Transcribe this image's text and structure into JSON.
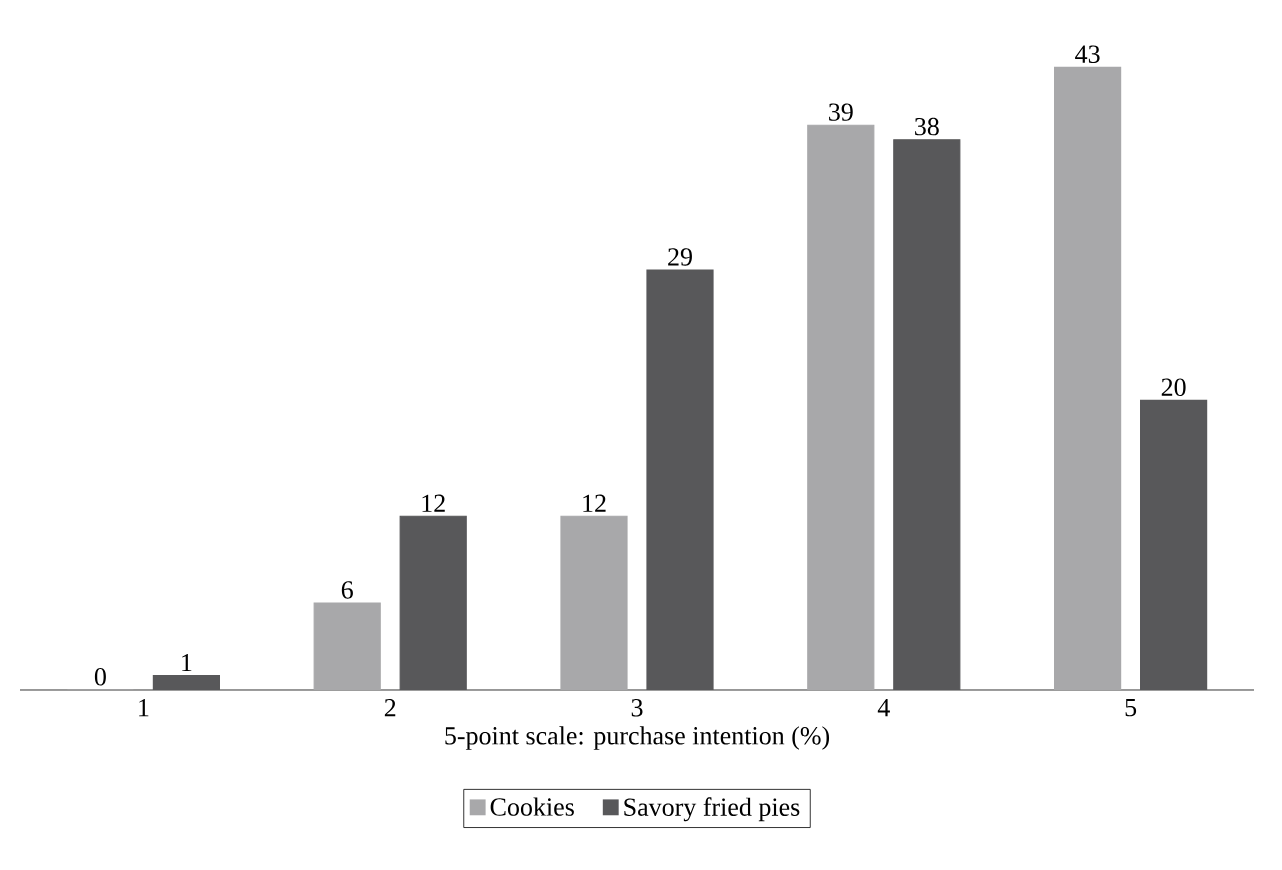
{
  "chart_data": {
    "type": "bar",
    "xlabel": "5-point scale: purchase intention (%)",
    "categories": [
      "1",
      "2",
      "3",
      "4",
      "5"
    ],
    "series": [
      {
        "name": "Cookies",
        "color": "#a8a8aa",
        "values": [
          0,
          6,
          12,
          39,
          43
        ]
      },
      {
        "name": "Savory fried pies",
        "color": "#58585a",
        "values": [
          1,
          12,
          29,
          38,
          20
        ]
      }
    ],
    "data_labels": true,
    "legend": "bottom"
  }
}
